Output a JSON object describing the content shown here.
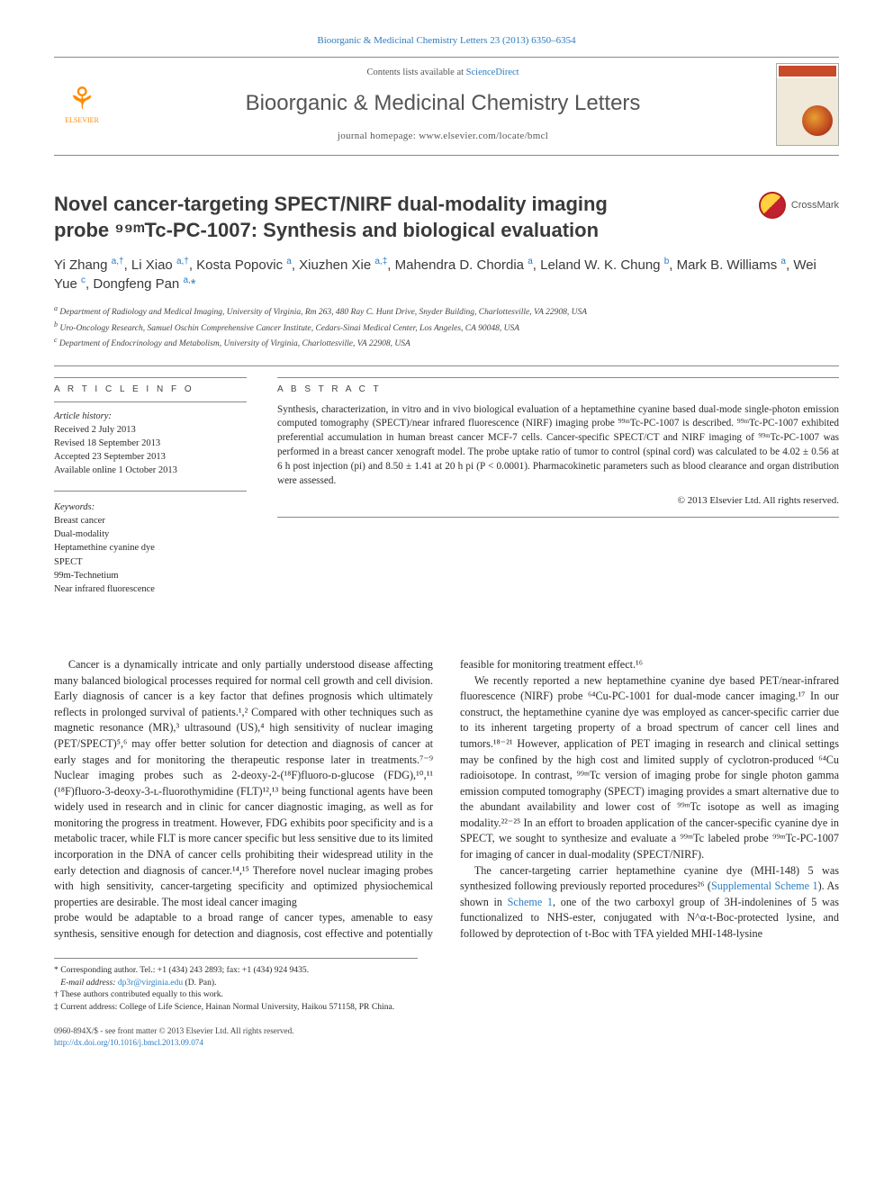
{
  "journal": {
    "citation": "Bioorganic & Medicinal Chemistry Letters 23 (2013) 6350–6354",
    "contents_prefix": "Contents lists available at ",
    "contents_link": "ScienceDirect",
    "name": "Bioorganic & Medicinal Chemistry Letters",
    "homepage_label": "journal homepage: ",
    "homepage_url": "www.elsevier.com/locate/bmcl",
    "publisher": "ELSEVIER"
  },
  "crossmark": {
    "label": "CrossMark"
  },
  "article": {
    "title_l1": "Novel cancer-targeting SPECT/NIRF dual-modality imaging",
    "title_l2": "probe ⁹⁹ᵐTc-PC-1007: Synthesis and biological evaluation"
  },
  "authors_html": "Yi Zhang <sup><a>a,†</a></sup>, Li Xiao <sup><a>a,†</a></sup>, Kosta Popovic <sup><a>a</a></sup>, Xiuzhen Xie <sup><a>a,‡</a></sup>, Mahendra D. Chordia <sup><a>a</a></sup>, Leland W. K. Chung <sup><a>b</a></sup>, Mark B. Williams <sup><a>a</a></sup>, Wei Yue <sup><a>c</a></sup>, Dongfeng Pan <sup><a>a,</a></sup><a>*</a>",
  "affiliations": {
    "a": "Department of Radiology and Medical Imaging, University of Virginia, Rm 263, 480 Ray C. Hunt Drive, Snyder Building, Charlottesville, VA 22908, USA",
    "b": "Uro-Oncology Research, Samuel Oschin Comprehensive Cancer Institute, Cedars-Sinai Medical Center, Los Angeles, CA 90048, USA",
    "c": "Department of Endocrinology and Metabolism, University of Virginia, Charlottesville, VA 22908, USA"
  },
  "info": {
    "heading": "A R T I C L E   I N F O",
    "history_label": "Article history:",
    "received": "Received 2 July 2013",
    "revised": "Revised 18 September 2013",
    "accepted": "Accepted 23 September 2013",
    "online": "Available online 1 October 2013",
    "keywords_label": "Keywords:",
    "keywords": [
      "Breast cancer",
      "Dual-modality",
      "Heptamethine cyanine dye",
      "SPECT",
      "99m-Technetium",
      "Near infrared fluorescence"
    ]
  },
  "abstract": {
    "heading": "A B S T R A C T",
    "text": "Synthesis, characterization, in vitro and in vivo biological evaluation of a heptamethine cyanine based dual-mode single-photon emission computed tomography (SPECT)/near infrared fluorescence (NIRF) imaging probe ⁹⁹ᵐTc-PC-1007 is described. ⁹⁹ᵐTc-PC-1007 exhibited preferential accumulation in human breast cancer MCF-7 cells. Cancer-specific SPECT/CT and NIRF imaging of ⁹⁹ᵐTc-PC-1007 was performed in a breast cancer xenograft model. The probe uptake ratio of tumor to control (spinal cord) was calculated to be 4.02 ± 0.56 at 6 h post injection (pi) and 8.50 ± 1.41 at 20 h pi (P < 0.0001). Pharmacokinetic parameters such as blood clearance and organ distribution were assessed.",
    "copyright": "© 2013 Elsevier Ltd. All rights reserved."
  },
  "body": {
    "p1": "Cancer is a dynamically intricate and only partially understood disease affecting many balanced biological processes required for normal cell growth and cell division. Early diagnosis of cancer is a key factor that defines prognosis which ultimately reflects in prolonged survival of patients.¹,² Compared with other techniques such as magnetic resonance (MR),³ ultrasound (US),⁴ high sensitivity of nuclear imaging (PET/SPECT)⁵,⁶ may offer better solution for detection and diagnosis of cancer at early stages and for monitoring the therapeutic response later in treatments.⁷⁻⁹ Nuclear imaging probes such as 2-deoxy-2-(¹⁸F)fluoro-ᴅ-glucose (FDG),¹⁰,¹¹ (¹⁸F)fluoro-3-deoxy-3-ʟ-fluorothymidine (FLT)¹²,¹³ being functional agents have been widely used in research and in clinic for cancer diagnostic imaging, as well as for monitoring the progress in treatment. However, FDG exhibits poor specificity and is a metabolic tracer, while FLT is more cancer specific but less sensitive due to its limited incorporation in the DNA of cancer cells prohibiting their widespread utility in the early detection and diagnosis of cancer.¹⁴,¹⁵ Therefore novel nuclear imaging probes with high sensitivity, cancer-targeting specificity and optimized physiochemical properties are desirable. The most ideal cancer imaging",
    "p2": "probe would be adaptable to a broad range of cancer types, amenable to easy synthesis, sensitive enough for detection and diagnosis, cost effective and potentially feasible for monitoring treatment effect.¹⁶",
    "p3": "We recently reported a new heptamethine cyanine dye based PET/near-infrared fluorescence (NIRF) probe ⁶⁴Cu-PC-1001 for dual-mode cancer imaging.¹⁷ In our construct, the heptamethine cyanine dye was employed as cancer-specific carrier due to its inherent targeting property of a broad spectrum of cancer cell lines and tumors.¹⁸⁻²¹ However, application of PET imaging in research and clinical settings may be confined by the high cost and limited supply of cyclotron-produced ⁶⁴Cu radioisotope. In contrast, ⁹⁹ᵐTc version of imaging probe for single photon gamma emission computed tomography (SPECT) imaging provides a smart alternative due to the abundant availability and lower cost of ⁹⁹ᵐTc isotope as well as imaging modality.²²⁻²⁵ In an effort to broaden application of the cancer-specific cyanine dye in SPECT, we sought to synthesize and evaluate a ⁹⁹ᵐTc labeled probe ⁹⁹ᵐTc-PC-1007 for imaging of cancer in dual-modality (SPECT/NIRF).",
    "p4_pre": "The cancer-targeting carrier heptamethine cyanine dye (MHI-148) 5 was synthesized following previously reported procedures²⁶ (",
    "p4_link": "Supplemental Scheme 1",
    "p4_mid": "). As shown in ",
    "p4_link2": "Scheme 1",
    "p4_post": ", one of the two carboxyl group of 3H-indolenines of 5 was functionalized to NHS-ester, conjugated with N^α-t-Boc-protected lysine, and followed by deprotection of t-Boc with TFA yielded MHI-148-lysine"
  },
  "footnotes": {
    "corr": "* Corresponding author. Tel.: +1 (434) 243 2893; fax: +1 (434) 924 9435.",
    "email_label": "E-mail address: ",
    "email": "dp3r@virginia.edu",
    "email_suffix": " (D. Pan).",
    "dagger": "† These authors contributed equally to this work.",
    "ddagger": "‡ Current address: College of Life Science, Hainan Normal University, Haikou 571158, PR China."
  },
  "bottom": {
    "issn": "0960-894X/$ - see front matter © 2013 Elsevier Ltd. All rights reserved.",
    "doi_label": "http://dx.doi.org/",
    "doi": "10.1016/j.bmcl.2013.09.074"
  },
  "colors": {
    "link": "#2d7cc0",
    "text": "#2a2a2a",
    "rule": "#888888",
    "elsevier": "#ff8a00"
  }
}
